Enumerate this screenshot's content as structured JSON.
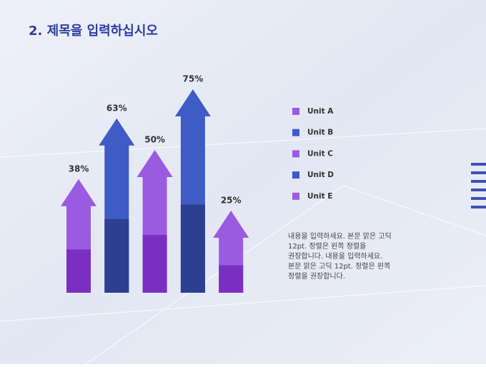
{
  "chart_data": {
    "type": "arrow-bar",
    "title": "2. 제목을 입력하십시오",
    "categories": [
      "Unit A",
      "Unit B",
      "Unit C",
      "Unit D",
      "Unit E"
    ],
    "values": [
      38,
      63,
      50,
      75,
      25
    ],
    "value_labels": [
      "38%",
      "63%",
      "50%",
      "75%",
      "25%"
    ],
    "colors": [
      "#9b5be0",
      "#3f5bc6",
      "#9b5be0",
      "#3f5bc6",
      "#9b5be0"
    ],
    "shade_colors": [
      "#7a2fc2",
      "#2c3f90",
      "#7a2fc2",
      "#2c3f90",
      "#7a2fc2"
    ],
    "annotation": [
      "내용을 입력하세요. 본문 맑은 고딕",
      "12pt. 정렬은 왼쪽 정렬을",
      "권장합니다. 내용을 입력하세요.",
      "본문 맑은 고딕 12pt. 정렬은 왼쪽",
      "정렬을 권장합니다."
    ]
  }
}
